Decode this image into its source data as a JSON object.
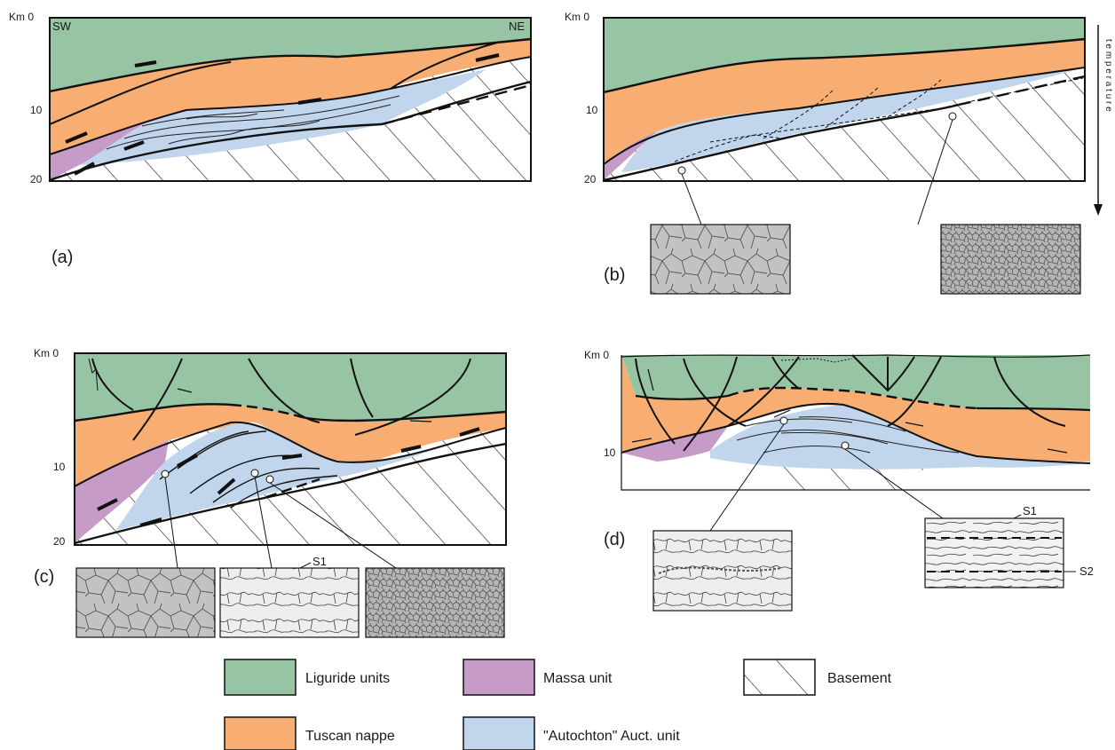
{
  "colors": {
    "liguride": "#97c4a2",
    "tuscan": "#f8ae73",
    "massa": "#c79bc8",
    "autochton": "#c1d6ec",
    "grain": "#b9b9b9",
    "grain_light": "#ececec"
  },
  "panels": {
    "a": {
      "label": "(a)",
      "depth_labels": [
        "Km 0",
        "10",
        "20"
      ],
      "sw": "SW",
      "ne": "NE"
    },
    "b": {
      "label": "(b)",
      "depth_labels": [
        "Km 0",
        "10",
        "20"
      ],
      "temperature": "t e m p e r a t u r e"
    },
    "c": {
      "label": "(c)",
      "depth_labels": [
        "Km 0",
        "10",
        "20"
      ],
      "s1": "S1"
    },
    "d": {
      "label": "(d)",
      "depth_labels": [
        "Km 0",
        "10"
      ],
      "s1": "S1",
      "s2": "S2"
    }
  },
  "legend": {
    "liguride": "Liguride units",
    "massa": "Massa unit",
    "basement": "Basement",
    "tuscan": "Tuscan nappe",
    "autochton": "\"Autochton\" Auct. unit"
  }
}
